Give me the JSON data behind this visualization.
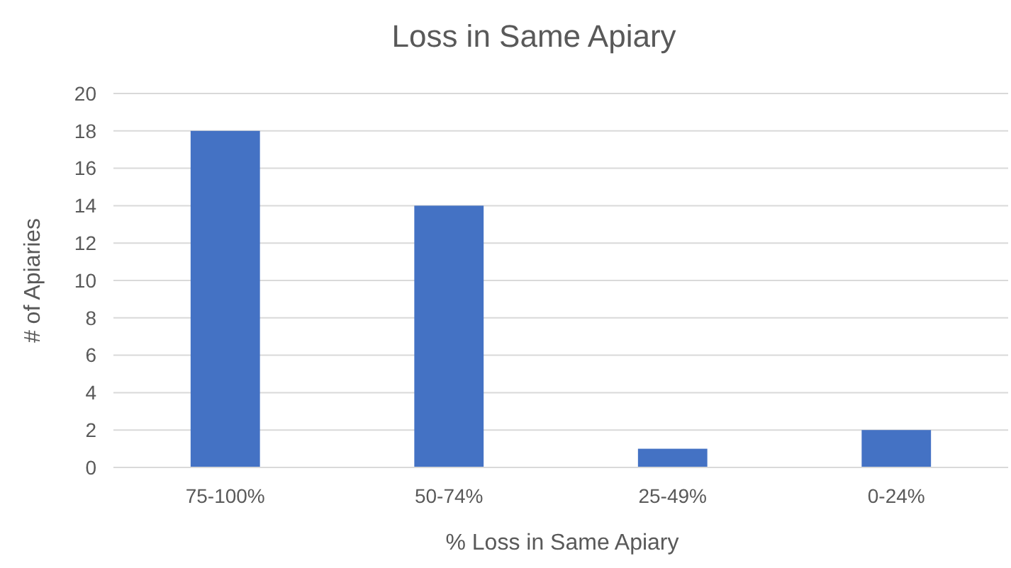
{
  "chart_data": {
    "type": "bar",
    "title": "Loss in Same Apiary",
    "xlabel": "% Loss in Same Apiary",
    "ylabel": "# of Apiaries",
    "categories": [
      "75-100%",
      "50-74%",
      "25-49%",
      "0-24%"
    ],
    "values": [
      18,
      14,
      1,
      2
    ],
    "color": "#4472c4",
    "ylim": [
      0,
      20
    ],
    "yticks": [
      0,
      2,
      4,
      6,
      8,
      10,
      12,
      14,
      16,
      18,
      20
    ],
    "grid": "y"
  }
}
